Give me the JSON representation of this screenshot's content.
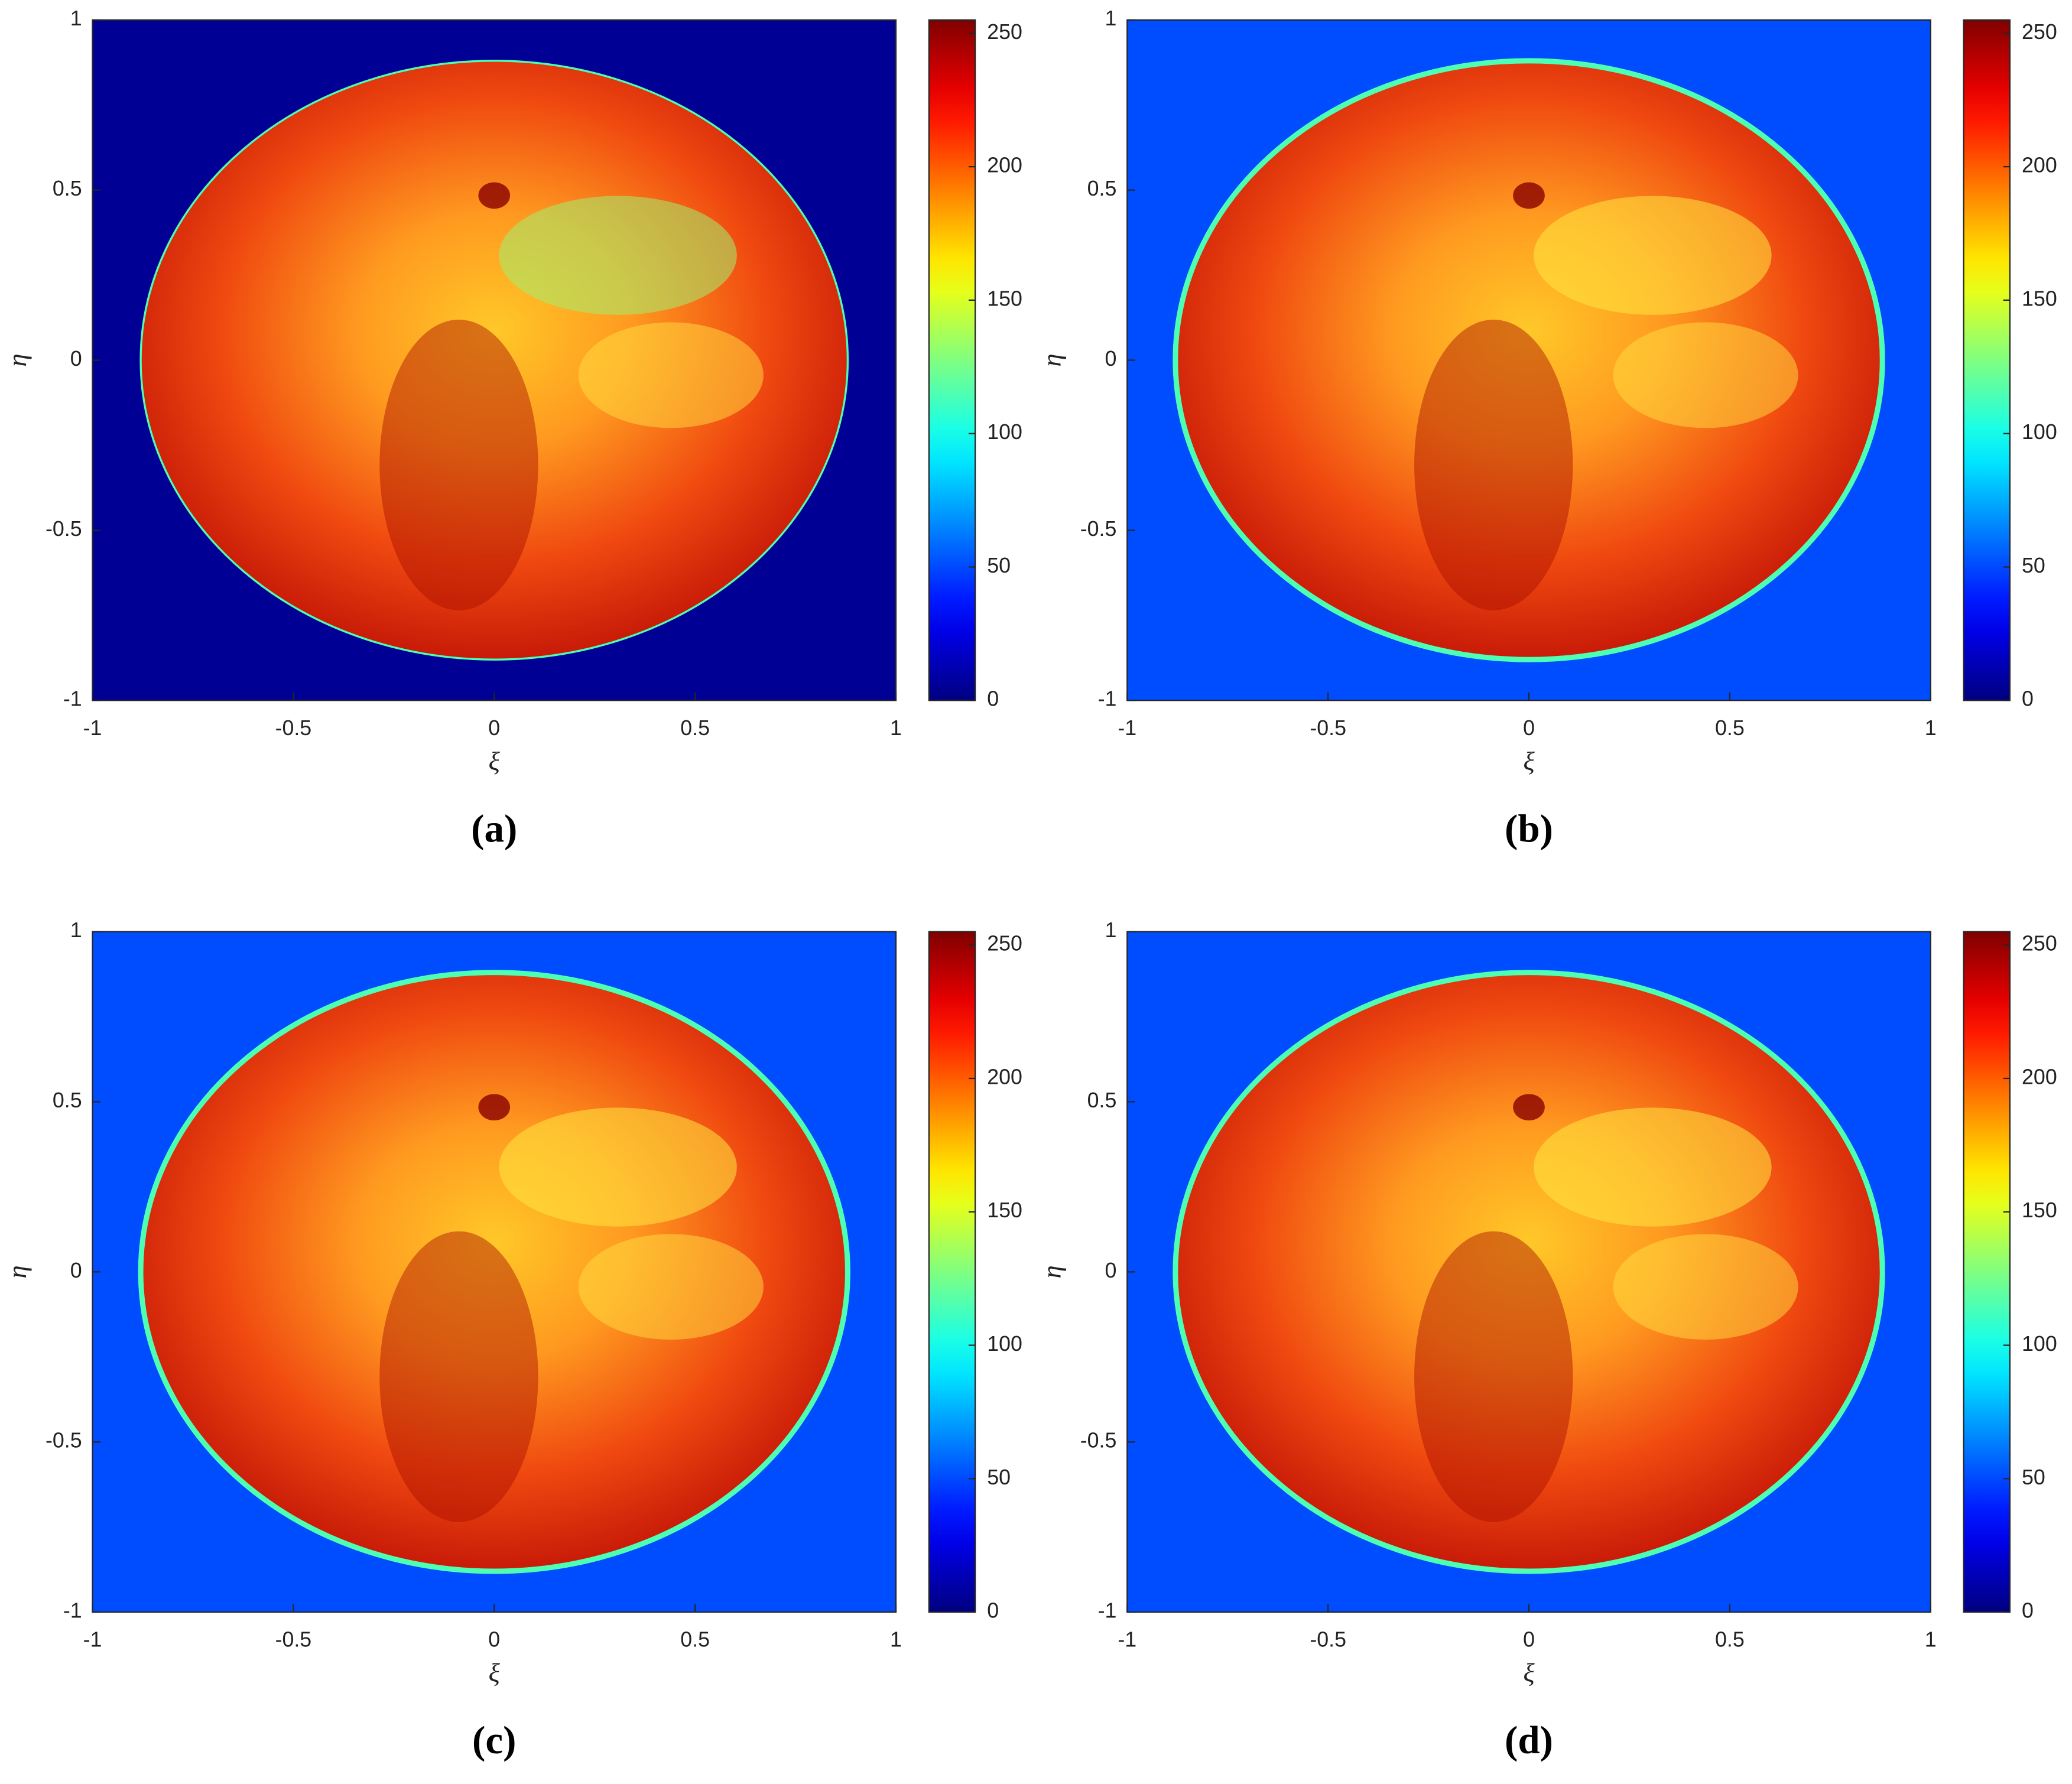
{
  "chart_data": [
    {
      "type": "heatmap",
      "label": "(a)",
      "xlabel": "ξ",
      "ylabel": "η",
      "xlim": [
        -1,
        1
      ],
      "ylim": [
        -1,
        1
      ],
      "xticks": [
        -1,
        -0.5,
        0,
        0.5,
        1
      ],
      "yticks": [
        -1,
        -0.5,
        0,
        0.5,
        1
      ],
      "clim": [
        0,
        255
      ],
      "cticks": [
        0,
        50,
        100,
        150,
        200,
        250
      ],
      "colormap": "jet"
    },
    {
      "type": "heatmap",
      "label": "(b)",
      "xlabel": "ξ",
      "ylabel": "η",
      "xlim": [
        -1,
        1
      ],
      "ylim": [
        -1,
        1
      ],
      "xticks": [
        -1,
        -0.5,
        0,
        0.5,
        1
      ],
      "yticks": [
        -1,
        -0.5,
        0,
        0.5,
        1
      ],
      "clim": [
        0,
        255
      ],
      "cticks": [
        0,
        50,
        100,
        150,
        200,
        250
      ],
      "colormap": "jet"
    },
    {
      "type": "heatmap",
      "label": "(c)",
      "xlabel": "ξ",
      "ylabel": "η",
      "xlim": [
        -1,
        1
      ],
      "ylim": [
        -1,
        1
      ],
      "xticks": [
        -1,
        -0.5,
        0,
        0.5,
        1
      ],
      "yticks": [
        -1,
        -0.5,
        0,
        0.5,
        1
      ],
      "clim": [
        0,
        255
      ],
      "cticks": [
        0,
        50,
        100,
        150,
        200,
        250
      ],
      "colormap": "jet"
    },
    {
      "type": "heatmap",
      "label": "(d)",
      "xlabel": "ξ",
      "ylabel": "η",
      "xlim": [
        -1,
        1
      ],
      "ylim": [
        -1,
        1
      ],
      "xticks": [
        -1,
        -0.5,
        0,
        0.5,
        1
      ],
      "yticks": [
        -1,
        -0.5,
        0,
        0.5,
        1
      ],
      "clim": [
        0,
        255
      ],
      "cticks": [
        0,
        50,
        100,
        150,
        200,
        250
      ],
      "colormap": "jet"
    }
  ]
}
